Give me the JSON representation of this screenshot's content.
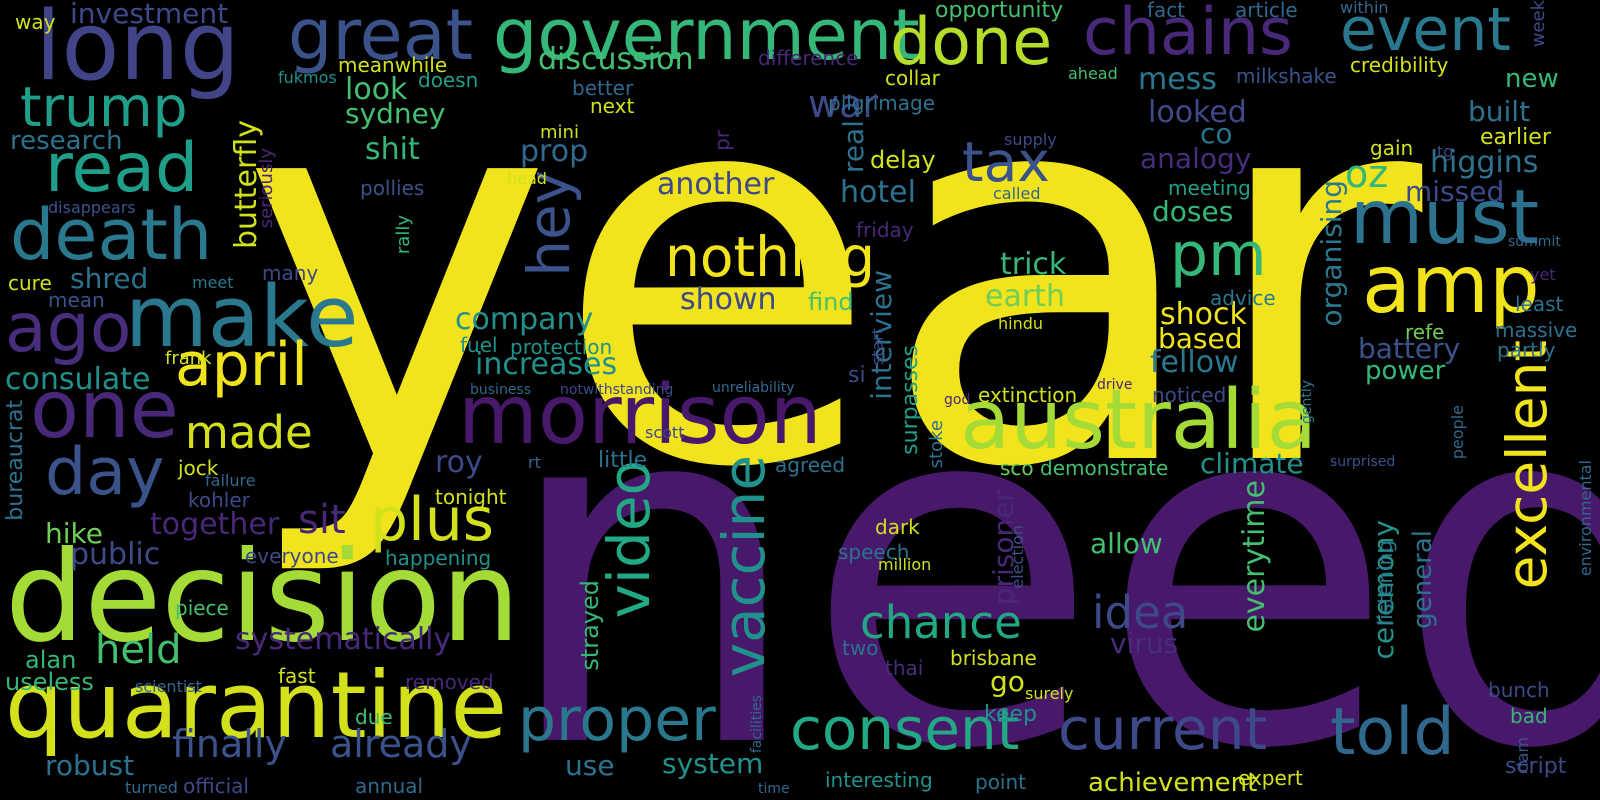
{
  "cloud": {
    "words": [
      {
        "text": "year",
        "color": "#f2e41c"
      },
      {
        "text": "need",
        "color": "#48186a"
      },
      {
        "text": "decision",
        "color": "#a5db36"
      },
      {
        "text": "quarantine",
        "color": "#d2e11b"
      },
      {
        "text": "australia",
        "color": "#a5db36"
      },
      {
        "text": "morrison",
        "color": "#48186a"
      },
      {
        "text": "government",
        "color": "#35b779"
      },
      {
        "text": "long",
        "color": "#414487"
      },
      {
        "text": "great",
        "color": "#3b528b"
      },
      {
        "text": "done",
        "color": "#b5de2b"
      },
      {
        "text": "chains",
        "color": "#482878"
      },
      {
        "text": "event",
        "color": "#2a788e"
      },
      {
        "text": "make",
        "color": "#2a788e"
      },
      {
        "text": "one",
        "color": "#482878"
      },
      {
        "text": "death",
        "color": "#2a788e"
      },
      {
        "text": "read",
        "color": "#1f9e89"
      },
      {
        "text": "trump",
        "color": "#1f9e89"
      },
      {
        "text": "ago",
        "color": "#472d7b"
      },
      {
        "text": "april",
        "color": "#f2e41c"
      },
      {
        "text": "day",
        "color": "#3b528b"
      },
      {
        "text": "plus",
        "color": "#d2e11b"
      },
      {
        "text": "made",
        "color": "#d2e11b"
      },
      {
        "text": "nothing",
        "color": "#f2e41c"
      },
      {
        "text": "pm",
        "color": "#35b779"
      },
      {
        "text": "tax",
        "color": "#3b528b"
      },
      {
        "text": "must",
        "color": "#2c728e"
      },
      {
        "text": "amp",
        "color": "#f2e41c"
      },
      {
        "text": "hey",
        "color": "#3b528b"
      },
      {
        "text": "proper",
        "color": "#2a788e"
      },
      {
        "text": "video",
        "color": "#22a884"
      },
      {
        "text": "vaccine",
        "color": "#21918c"
      },
      {
        "text": "consent",
        "color": "#22a884"
      },
      {
        "text": "current",
        "color": "#3e4989"
      },
      {
        "text": "told",
        "color": "#31688e"
      },
      {
        "text": "excellent",
        "color": "#f2e41c"
      },
      {
        "text": "chance",
        "color": "#22a884"
      },
      {
        "text": "idea",
        "color": "#3e4989"
      },
      {
        "text": "finally",
        "color": "#3b528b"
      },
      {
        "text": "already",
        "color": "#3b528b"
      },
      {
        "text": "held",
        "color": "#44bf70"
      },
      {
        "text": "systematically",
        "color": "#482878"
      },
      {
        "text": "everytime",
        "color": "#44bf70"
      },
      {
        "text": "prisoner",
        "color": "#482878"
      },
      {
        "text": "ceremony",
        "color": "#21918c"
      },
      {
        "text": "general",
        "color": "#2c728e"
      },
      {
        "text": "virus",
        "color": "#472d7b"
      },
      {
        "text": "allow",
        "color": "#44bf70"
      },
      {
        "text": "climate",
        "color": "#21918c"
      },
      {
        "text": "fellow",
        "color": "#2a788e"
      },
      {
        "text": "based",
        "color": "#f2e41c"
      },
      {
        "text": "shock",
        "color": "#f2e41c"
      },
      {
        "text": "battery",
        "color": "#3b528b"
      },
      {
        "text": "power",
        "color": "#35b779"
      },
      {
        "text": "organising",
        "color": "#2a788e"
      },
      {
        "text": "oz",
        "color": "#35b779"
      },
      {
        "text": "higgins",
        "color": "#2c728e"
      },
      {
        "text": "missed",
        "color": "#3e4989"
      },
      {
        "text": "built",
        "color": "#2c728e"
      },
      {
        "text": "new",
        "color": "#35b779"
      },
      {
        "text": "earlier",
        "color": "#d2e11b"
      },
      {
        "text": "mess",
        "color": "#2a788e"
      },
      {
        "text": "looked",
        "color": "#3e4989"
      },
      {
        "text": "co",
        "color": "#2c728e"
      },
      {
        "text": "analogy",
        "color": "#472d7b"
      },
      {
        "text": "meeting",
        "color": "#1f9e89"
      },
      {
        "text": "doses",
        "color": "#35b779"
      },
      {
        "text": "trick",
        "color": "#35b779"
      },
      {
        "text": "earth",
        "color": "#6ece58"
      },
      {
        "text": "war",
        "color": "#3e4989"
      },
      {
        "text": "real",
        "color": "#2c728e"
      },
      {
        "text": "delay",
        "color": "#d2e11b"
      },
      {
        "text": "hotel",
        "color": "#2c728e"
      },
      {
        "text": "shown",
        "color": "#3e4989"
      },
      {
        "text": "find",
        "color": "#44bf70"
      },
      {
        "text": "interview",
        "color": "#2c728e"
      },
      {
        "text": "surpasses",
        "color": "#1f9e89"
      },
      {
        "text": "another",
        "color": "#3e4989"
      },
      {
        "text": "prop",
        "color": "#31688e"
      },
      {
        "text": "discussion",
        "color": "#44bf70"
      },
      {
        "text": "look",
        "color": "#44bf70"
      },
      {
        "text": "sydney",
        "color": "#44bf70"
      },
      {
        "text": "shit",
        "color": "#35b779"
      },
      {
        "text": "butterfly",
        "color": "#d2e11b"
      },
      {
        "text": "company",
        "color": "#21918c"
      },
      {
        "text": "increases",
        "color": "#21918c"
      },
      {
        "text": "consulate",
        "color": "#21918c"
      },
      {
        "text": "shred",
        "color": "#2c728e"
      },
      {
        "text": "research",
        "color": "#2c728e"
      },
      {
        "text": "investment",
        "color": "#3e4989"
      },
      {
        "text": "opportunity",
        "color": "#44bf70"
      },
      {
        "text": "fact",
        "color": "#31688e"
      },
      {
        "text": "article",
        "color": "#31688e"
      },
      {
        "text": "within",
        "color": "#31688e"
      },
      {
        "text": "week",
        "color": "#3e4989"
      },
      {
        "text": "credibility",
        "color": "#d2e11b"
      },
      {
        "text": "milkshake",
        "color": "#3b528b"
      },
      {
        "text": "ahead",
        "color": "#44bf70"
      },
      {
        "text": "collar",
        "color": "#d2e11b"
      },
      {
        "text": "pilgrimage",
        "color": "#2c728e"
      },
      {
        "text": "difference",
        "color": "#482878"
      },
      {
        "text": "meanwhile",
        "color": "#d2e11b"
      },
      {
        "text": "fukmos",
        "color": "#21918c"
      },
      {
        "text": "doesn",
        "color": "#1f9e89"
      },
      {
        "text": "better",
        "color": "#31688e"
      },
      {
        "text": "next",
        "color": "#d2e11b"
      },
      {
        "text": "mini",
        "color": "#d2e11b"
      },
      {
        "text": "pr",
        "color": "#482878"
      },
      {
        "text": "head",
        "color": "#d2e11b"
      },
      {
        "text": "way",
        "color": "#d2e11b"
      },
      {
        "text": "pollies",
        "color": "#3b528b"
      },
      {
        "text": "disappears",
        "color": "#3b528b"
      },
      {
        "text": "seriously",
        "color": "#482878"
      },
      {
        "text": "rally",
        "color": "#35b779"
      },
      {
        "text": "cure",
        "color": "#d2e11b"
      },
      {
        "text": "mean",
        "color": "#3b528b"
      },
      {
        "text": "meet",
        "color": "#2a788e"
      },
      {
        "text": "many",
        "color": "#3e4989"
      },
      {
        "text": "frank",
        "color": "#d2e11b"
      },
      {
        "text": "fuel",
        "color": "#21918c"
      },
      {
        "text": "protection",
        "color": "#21918c"
      },
      {
        "text": "business",
        "color": "#31688e"
      },
      {
        "text": "notwithstanding",
        "color": "#3e4989"
      },
      {
        "text": "unreliability",
        "color": "#31688e"
      },
      {
        "text": "si",
        "color": "#3e4989"
      },
      {
        "text": "extinction",
        "color": "#d2e11b"
      },
      {
        "text": "god",
        "color": "#482878"
      },
      {
        "text": "drive",
        "color": "#482878"
      },
      {
        "text": "noticed",
        "color": "#3e4989"
      },
      {
        "text": "gently",
        "color": "#2a788e"
      },
      {
        "text": "people",
        "color": "#31688e"
      },
      {
        "text": "bureaucrat",
        "color": "#2c728e"
      },
      {
        "text": "together",
        "color": "#482878"
      },
      {
        "text": "sit",
        "color": "#482878"
      },
      {
        "text": "hike",
        "color": "#6ece58"
      },
      {
        "text": "public",
        "color": "#3e4989"
      },
      {
        "text": "roy",
        "color": "#3e4989"
      },
      {
        "text": "little",
        "color": "#2c728e"
      },
      {
        "text": "scott",
        "color": "#3e4989"
      },
      {
        "text": "rt",
        "color": "#31688e"
      },
      {
        "text": "agreed",
        "color": "#2c728e"
      },
      {
        "text": "stoke",
        "color": "#2c728e"
      },
      {
        "text": "sco",
        "color": "#6ece58"
      },
      {
        "text": "demonstrate",
        "color": "#44bf70"
      },
      {
        "text": "surprised",
        "color": "#3b528b"
      },
      {
        "text": "environmental",
        "color": "#31688e"
      },
      {
        "text": "jock",
        "color": "#d2e11b"
      },
      {
        "text": "failure",
        "color": "#31688e"
      },
      {
        "text": "kohler",
        "color": "#3e4989"
      },
      {
        "text": "tonight",
        "color": "#d2e11b"
      },
      {
        "text": "dark",
        "color": "#d2e11b"
      },
      {
        "text": "speech",
        "color": "#2c728e"
      },
      {
        "text": "million",
        "color": "#d2e11b"
      },
      {
        "text": "election",
        "color": "#3b528b"
      },
      {
        "text": "everyone",
        "color": "#3e4989"
      },
      {
        "text": "happening",
        "color": "#21918c"
      },
      {
        "text": "alan",
        "color": "#35b779"
      },
      {
        "text": "useless",
        "color": "#35b779"
      },
      {
        "text": "scientist",
        "color": "#31688e"
      },
      {
        "text": "piece",
        "color": "#44bf70"
      },
      {
        "text": "fast",
        "color": "#d2e11b"
      },
      {
        "text": "removed",
        "color": "#482878"
      },
      {
        "text": "due",
        "color": "#44bf70"
      },
      {
        "text": "robust",
        "color": "#2c728e"
      },
      {
        "text": "turned",
        "color": "#31688e"
      },
      {
        "text": "official",
        "color": "#3e4989"
      },
      {
        "text": "annual",
        "color": "#31688e"
      },
      {
        "text": "use",
        "color": "#2c728e"
      },
      {
        "text": "system",
        "color": "#21918c"
      },
      {
        "text": "facilities",
        "color": "#31688e"
      },
      {
        "text": "time",
        "color": "#31688e"
      },
      {
        "text": "interesting",
        "color": "#21918c"
      },
      {
        "text": "point",
        "color": "#2c728e"
      },
      {
        "text": "achievement",
        "color": "#d2e11b"
      },
      {
        "text": "expert",
        "color": "#d2e11b"
      },
      {
        "text": "two",
        "color": "#2c728e"
      },
      {
        "text": "thai",
        "color": "#472d7b"
      },
      {
        "text": "brisbane",
        "color": "#d2e11b"
      },
      {
        "text": "go",
        "color": "#d2e11b"
      },
      {
        "text": "surely",
        "color": "#d2e11b"
      },
      {
        "text": "keep",
        "color": "#21918c"
      },
      {
        "text": "strayed",
        "color": "#35b779"
      },
      {
        "text": "listening",
        "color": "#2a788e"
      },
      {
        "text": "bunch",
        "color": "#3e4989"
      },
      {
        "text": "bad",
        "color": "#35b779"
      },
      {
        "text": "dam",
        "color": "#3b528b"
      },
      {
        "text": "script",
        "color": "#3e4989"
      },
      {
        "text": "massive",
        "color": "#2c728e"
      },
      {
        "text": "partly",
        "color": "#2c728e"
      },
      {
        "text": "least",
        "color": "#2c728e"
      },
      {
        "text": "refe",
        "color": "#6ece58"
      },
      {
        "text": "yet",
        "color": "#482878"
      },
      {
        "text": "advice",
        "color": "#2a788e"
      },
      {
        "text": "hindu",
        "color": "#d2e11b"
      },
      {
        "text": "summit",
        "color": "#31688e"
      },
      {
        "text": "supply",
        "color": "#3e4989"
      },
      {
        "text": "called",
        "color": "#31688e"
      },
      {
        "text": "friday",
        "color": "#482878"
      },
      {
        "text": "start",
        "color": "#3e4989"
      },
      {
        "text": "gain",
        "color": "#d2e11b"
      },
      {
        "text": "tg",
        "color": "#3e4989"
      }
    ]
  }
}
